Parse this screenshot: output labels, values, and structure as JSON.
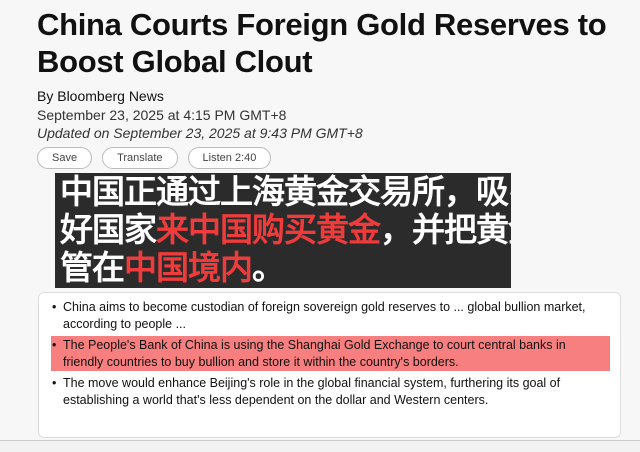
{
  "article": {
    "title": "China Courts Foreign Gold Reserves to Boost Global Clout",
    "byline": "By Bloomberg News",
    "published": "September 23, 2025 at 4:15 PM GMT+8",
    "updated": "Updated on September 23, 2025 at 9:43 PM GMT+8",
    "buttons": {
      "save": "Save",
      "translate": "Translate",
      "listen": "Listen 2:40"
    },
    "bullets": [
      "China aims to become custodian of foreign sovereign gold reserves to ... global bullion market, according to people ...",
      "The People's Bank of China is using the Shanghai Gold Exchange to court central banks in friendly countries to buy bullion and store it within the country's borders.",
      "The move would enhance Beijing's role in the global financial system, furthering its goal of establishing a world that's less dependent on the dollar and Western centers."
    ]
  },
  "overlay": {
    "line1": "中国正通过上海黄金交易所，吸引友",
    "line2a": "好国家",
    "line2b": "来中国购买黄金",
    "line2c": "，并把黄金托",
    "line3a": "管在",
    "line3b": "中国境内",
    "line3c": "。"
  },
  "colors": {
    "highlight": "#f77f7f",
    "overlay_red": "#ee3b3b",
    "overlay_bg": "#2b2b2b"
  }
}
